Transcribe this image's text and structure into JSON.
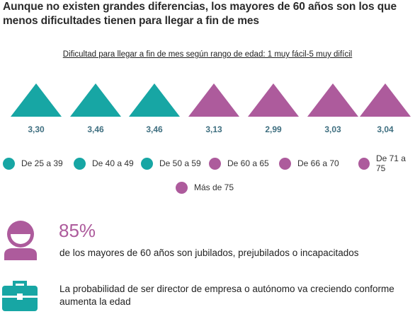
{
  "headline": "Aunque no existen grandes diferencias, los mayores de 60 años son los que menos dificultades tienen para llegar a fin de mes",
  "colors": {
    "teal": "#17a6a4",
    "purple": "#ad5b9c"
  },
  "chart_data": {
    "type": "bar",
    "title": "Dificultad para llegar a fin de mes según rango de edad: 1 muy fácil-5 muy difícil",
    "categories": [
      "De 25 a 39",
      "De 40 a 49",
      "De 50 a 59",
      "De 60 a 65",
      "De 66 a 70",
      "De 71 a 75",
      "Más de 75"
    ],
    "values": [
      3.3,
      3.46,
      3.46,
      3.13,
      2.99,
      3.03,
      3.04
    ],
    "value_labels": [
      "3,30",
      "3,46",
      "3,46",
      "3,13",
      "2,99",
      "3,03",
      "3,04"
    ],
    "marker_colors": [
      "#17a6a4",
      "#17a6a4",
      "#17a6a4",
      "#ad5b9c",
      "#ad5b9c",
      "#ad5b9c",
      "#ad5b9c"
    ],
    "legend_placement": "bottom",
    "grid": false
  },
  "stat1": {
    "icon": "person-icon",
    "value": "85%",
    "text": "de los mayores de 60 años son jubilados, prejubilados o incapacitados"
  },
  "stat2": {
    "icon": "briefcase-icon",
    "text": "La probabilidad de ser director de empresa o autónomo va creciendo conforme aumenta la edad"
  }
}
